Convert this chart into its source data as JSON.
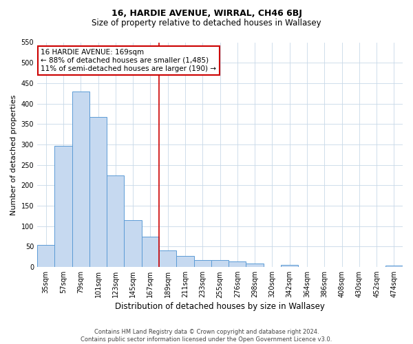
{
  "title": "16, HARDIE AVENUE, WIRRAL, CH46 6BJ",
  "subtitle": "Size of property relative to detached houses in Wallasey",
  "xlabel": "Distribution of detached houses by size in Wallasey",
  "ylabel": "Number of detached properties",
  "footer_line1": "Contains HM Land Registry data © Crown copyright and database right 2024.",
  "footer_line2": "Contains public sector information licensed under the Open Government Licence v3.0.",
  "categories": [
    "35sqm",
    "57sqm",
    "79sqm",
    "101sqm",
    "123sqm",
    "145sqm",
    "167sqm",
    "189sqm",
    "211sqm",
    "233sqm",
    "255sqm",
    "276sqm",
    "298sqm",
    "320sqm",
    "342sqm",
    "364sqm",
    "386sqm",
    "408sqm",
    "430sqm",
    "452sqm",
    "474sqm"
  ],
  "values": [
    55,
    296,
    430,
    368,
    224,
    114,
    75,
    40,
    28,
    18,
    17,
    13,
    8,
    0,
    5,
    0,
    0,
    0,
    0,
    0,
    3
  ],
  "bar_color": "#c6d9f0",
  "bar_edge_color": "#5b9bd5",
  "highlight_line_color": "#cc0000",
  "annotation_text": "16 HARDIE AVENUE: 169sqm\n← 88% of detached houses are smaller (1,485)\n11% of semi-detached houses are larger (190) →",
  "annotation_box_color": "#ffffff",
  "annotation_box_edge": "#cc0000",
  "ylim": [
    0,
    550
  ],
  "yticks": [
    0,
    50,
    100,
    150,
    200,
    250,
    300,
    350,
    400,
    450,
    500,
    550
  ],
  "background_color": "#ffffff",
  "grid_color": "#c8d8e8",
  "title_fontsize": 9,
  "subtitle_fontsize": 8.5,
  "xlabel_fontsize": 8.5,
  "ylabel_fontsize": 8,
  "tick_fontsize": 7,
  "footer_fontsize": 6,
  "annotation_fontsize": 7.5
}
